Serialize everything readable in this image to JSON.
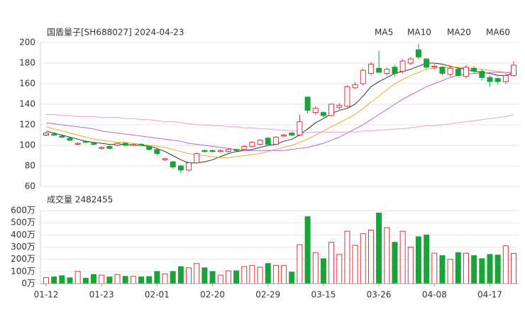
{
  "chart_data": [
    {
      "type": "candlestick",
      "title": "国盾量子[SH688027] 2024-04-23",
      "up_color": "#e0323c",
      "down_color": "#1aa33a",
      "open": [
        110,
        111,
        109,
        107,
        101,
        104,
        102,
        97,
        99,
        100,
        102,
        100,
        101,
        99,
        96,
        86,
        84,
        80,
        76,
        83,
        95,
        95,
        94,
        94,
        96,
        96,
        99,
        101,
        107,
        101,
        109,
        112,
        110,
        147,
        132,
        132,
        129,
        137,
        138,
        156,
        160,
        170,
        175,
        170,
        176,
        172,
        180,
        193,
        184,
        176,
        176,
        169,
        174,
        167,
        175,
        172,
        166,
        165,
        162,
        168
      ],
      "high": [
        113,
        112,
        110,
        108,
        103,
        105,
        103,
        99,
        100,
        103,
        103,
        102,
        102,
        100,
        97,
        88,
        85,
        81,
        84,
        93,
        96,
        96,
        96,
        97,
        97,
        100,
        104,
        106,
        108,
        109,
        111,
        113,
        130,
        147,
        138,
        133,
        141,
        141,
        159,
        162,
        175,
        181,
        192,
        176,
        178,
        184,
        186,
        199,
        185,
        179,
        177,
        177,
        176,
        178,
        177,
        174,
        168,
        166,
        170,
        182
      ],
      "low": [
        109,
        109,
        107,
        104,
        100,
        102,
        100,
        96,
        96,
        99,
        99,
        99,
        99,
        95,
        90,
        85,
        77,
        73,
        74,
        82,
        93,
        93,
        93,
        93,
        94,
        95,
        98,
        100,
        100,
        100,
        108,
        109,
        109,
        131,
        130,
        127,
        128,
        135,
        137,
        155,
        158,
        168,
        172,
        168,
        167,
        170,
        178,
        184,
        174,
        174,
        168,
        167,
        167,
        165,
        170,
        163,
        157,
        159,
        160,
        167
      ],
      "close": [
        112,
        110,
        108,
        105,
        102,
        103,
        101,
        98,
        97,
        102,
        100,
        101,
        100,
        96,
        92,
        87,
        79,
        76,
        83,
        92,
        94,
        94,
        95,
        96,
        95,
        99,
        103,
        105,
        101,
        108,
        110,
        110,
        123,
        134,
        136,
        129,
        140,
        139,
        157,
        159,
        173,
        179,
        171,
        174,
        170,
        182,
        184,
        186,
        176,
        177,
        170,
        175,
        168,
        176,
        172,
        166,
        162,
        162,
        168,
        178
      ],
      "series": [
        {
          "name": "MA5",
          "color": "#333333",
          "values": [
            114,
            112,
            110,
            108,
            106,
            104,
            103,
            102,
            101,
            101,
            101,
            100,
            100,
            99,
            97,
            94,
            90,
            86,
            83,
            83,
            84,
            86,
            89,
            92,
            94,
            95,
            96,
            98,
            100,
            101,
            104,
            106,
            110,
            116,
            122,
            126,
            131,
            134,
            136,
            140,
            148,
            157,
            162,
            166,
            170,
            172,
            174,
            177,
            180,
            180,
            179,
            177,
            175,
            174,
            172,
            171,
            170,
            168,
            168,
            170
          ]
        },
        {
          "name": "MA10",
          "color": "#f5a623",
          "values": [
            118,
            116,
            114,
            112,
            110,
            108,
            106,
            105,
            104,
            103,
            103,
            102,
            101,
            100,
            99,
            98,
            96,
            94,
            92,
            91,
            90,
            89,
            88,
            88,
            89,
            90,
            91,
            92,
            94,
            96,
            98,
            100,
            103,
            106,
            110,
            114,
            118,
            122,
            126,
            130,
            136,
            142,
            148,
            154,
            160,
            164,
            168,
            171,
            174,
            175,
            176,
            176,
            176,
            175,
            175,
            174,
            173,
            172,
            171,
            170
          ]
        },
        {
          "name": "MA20",
          "color": "#b36ad8",
          "values": [
            122,
            121,
            120,
            119,
            118,
            117,
            116,
            114,
            113,
            112,
            111,
            110,
            109,
            108,
            107,
            106,
            105,
            104,
            102,
            101,
            100,
            99,
            98,
            97,
            96,
            95,
            95,
            95,
            95,
            95,
            95,
            96,
            97,
            98,
            100,
            102,
            105,
            108,
            112,
            116,
            120,
            125,
            130,
            135,
            140,
            145,
            149,
            153,
            157,
            160,
            163,
            166,
            168,
            169,
            170,
            170,
            171,
            171,
            171,
            171
          ]
        },
        {
          "name": "MA60",
          "color": "#f29ad8",
          "values": [
            130,
            130,
            129,
            129,
            128,
            128,
            128,
            127,
            127,
            127,
            126,
            126,
            125,
            125,
            124,
            123,
            123,
            122,
            121,
            120,
            120,
            119,
            119,
            118,
            118,
            117,
            117,
            116,
            116,
            115,
            115,
            114,
            114,
            113,
            113,
            113,
            113,
            113,
            113,
            113,
            114,
            114,
            115,
            115,
            116,
            116,
            117,
            118,
            119,
            119,
            120,
            121,
            122,
            123,
            124,
            125,
            126,
            127,
            128,
            130
          ]
        }
      ],
      "ylim": [
        60,
        200
      ],
      "yticks": [
        60,
        80,
        100,
        120,
        140,
        160,
        180,
        200
      ],
      "grid": true
    },
    {
      "type": "bar",
      "title": "成交量 2482455",
      "categories": [
        "01-12",
        null,
        null,
        null,
        null,
        null,
        null,
        "01-23",
        null,
        null,
        null,
        null,
        null,
        null,
        "02-01",
        null,
        null,
        null,
        null,
        null,
        null,
        "02-20",
        null,
        null,
        null,
        null,
        null,
        null,
        "02-29",
        null,
        null,
        null,
        null,
        null,
        null,
        "03-15",
        null,
        null,
        null,
        null,
        null,
        null,
        "03-26",
        null,
        null,
        null,
        null,
        null,
        null,
        "04-08",
        null,
        null,
        null,
        null,
        null,
        null,
        "04-17",
        null,
        null,
        null
      ],
      "values": [
        50,
        55,
        65,
        48,
        100,
        45,
        75,
        70,
        55,
        75,
        60,
        60,
        55,
        58,
        100,
        80,
        100,
        140,
        130,
        165,
        130,
        100,
        70,
        105,
        105,
        140,
        150,
        135,
        165,
        150,
        150,
        95,
        320,
        550,
        255,
        205,
        340,
        240,
        430,
        315,
        410,
        440,
        580,
        460,
        340,
        430,
        300,
        385,
        400,
        250,
        230,
        200,
        255,
        250,
        230,
        205,
        240,
        235,
        310,
        248
      ],
      "ylim": [
        0,
        600
      ],
      "yticks": [
        {
          "value": 0,
          "label": "0万"
        },
        {
          "value": 100,
          "label": "100万"
        },
        {
          "value": 200,
          "label": "200万"
        },
        {
          "value": 300,
          "label": "300万"
        },
        {
          "value": 400,
          "label": "400万"
        },
        {
          "value": 500,
          "label": "500万"
        },
        {
          "value": 600,
          "label": "600万"
        }
      ],
      "grid": true
    }
  ]
}
